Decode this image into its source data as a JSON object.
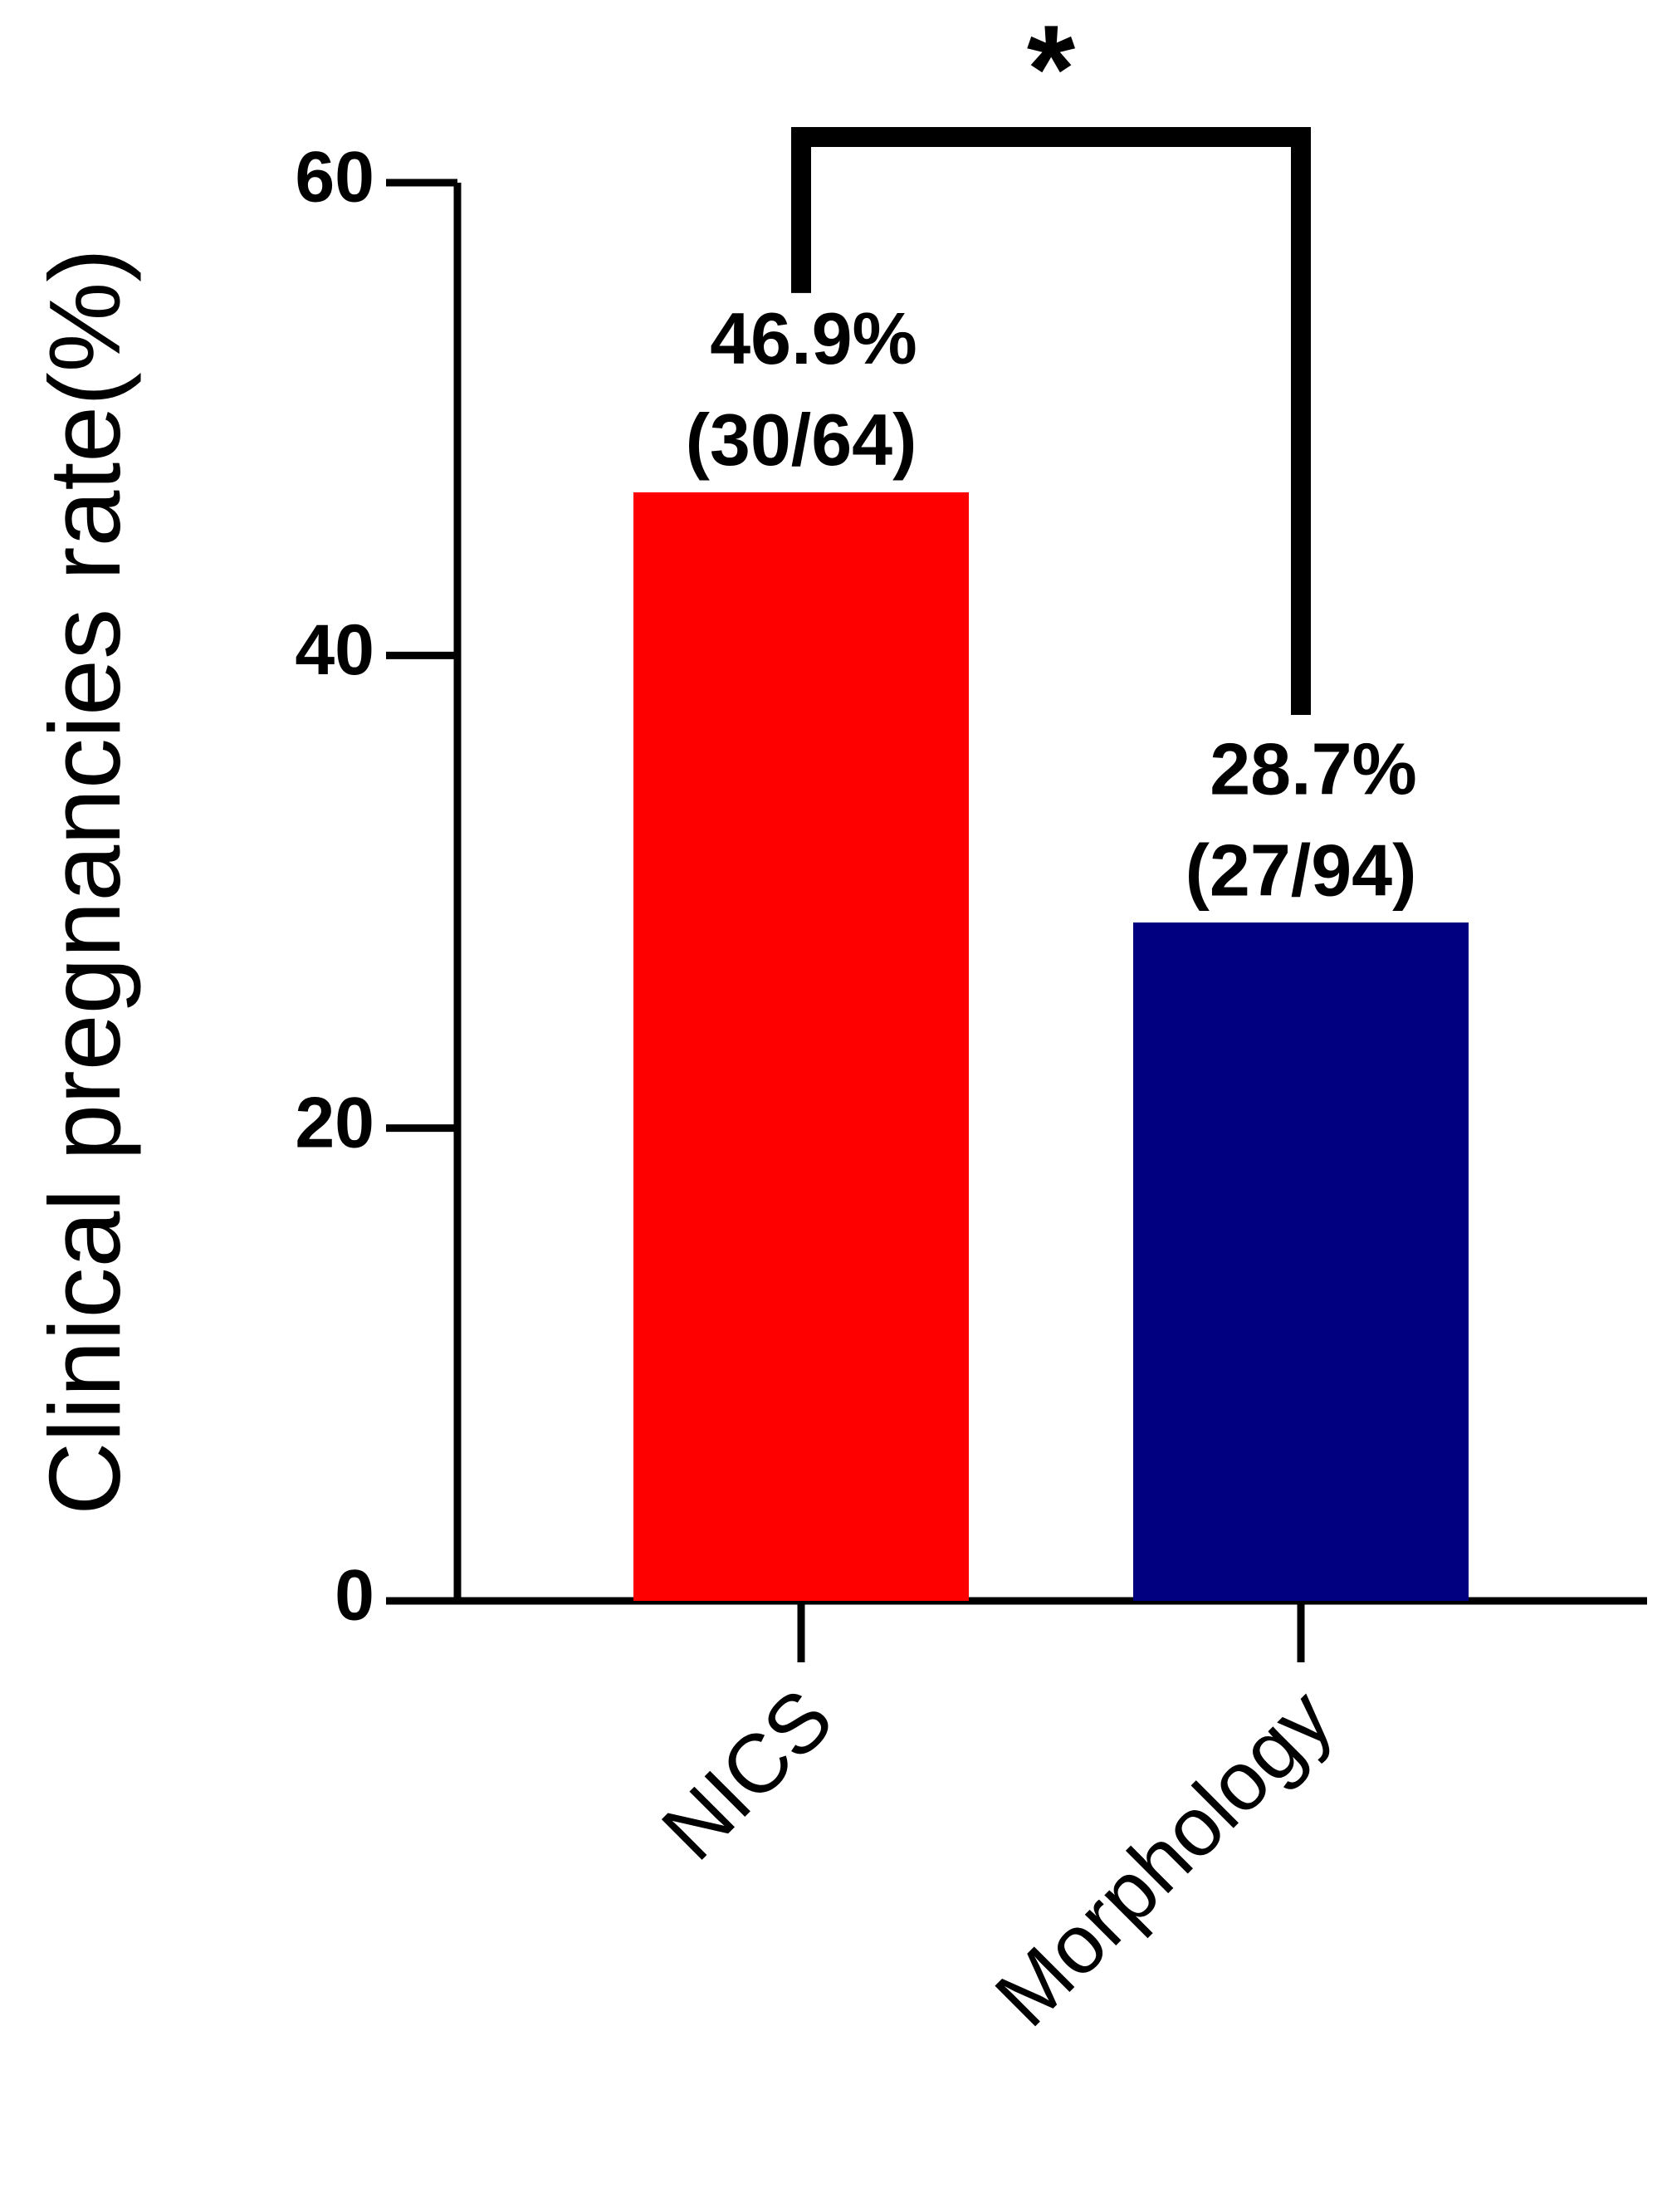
{
  "chart_data": {
    "type": "bar",
    "y_label": "Clinical pregnancies rate(%)",
    "categories": [
      "NICS",
      "Morphology"
    ],
    "values": [
      46.9,
      28.7
    ],
    "value_labels": [
      "46.9%",
      "28.7%"
    ],
    "counts": [
      "(30/64)",
      "(27/94)"
    ],
    "colors": [
      "#ff0000",
      "#000080"
    ],
    "ylim": [
      0,
      60
    ],
    "yticks": [
      0,
      20,
      40,
      60
    ],
    "annotation": "*"
  }
}
